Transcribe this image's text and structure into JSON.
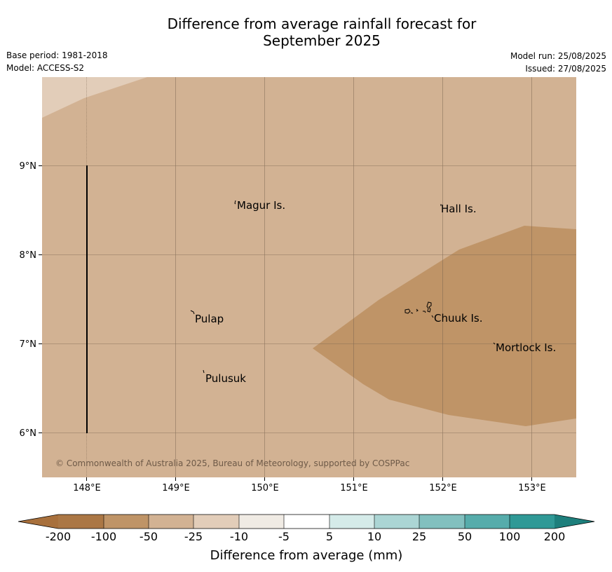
{
  "header": {
    "title_line1": "Difference from average rainfall forecast for",
    "title_line2": "September 2025",
    "base_period": "Base period: 1981-2018",
    "model": "Model: ACCESS-S2",
    "model_run": "Model run: 25/08/2025",
    "issued": "Issued: 27/08/2025"
  },
  "map": {
    "lon_ticks": [
      "148°E",
      "149°E",
      "150°E",
      "151°E",
      "152°E",
      "153°E"
    ],
    "lat_ticks": [
      "9°N",
      "8°N",
      "7°N",
      "6°N"
    ],
    "places": [
      "Magur Is.",
      "Hall Is.",
      "Pulap",
      "Chuuk Is.",
      "Mortlock Is.",
      "Pulusuk"
    ],
    "copyright": "© Commonwealth of Australia 2025, Bureau of Meteorology, supported by COSPPac",
    "colors": {
      "minus_25_to_50": "#d2b293",
      "minus_50_to_100": "#bf9467",
      "minus_10_to_25": "#e2cdb9"
    }
  },
  "colorbar": {
    "labels": [
      "-200",
      "-100",
      "-50",
      "-25",
      "-10",
      "-5",
      "5",
      "10",
      "25",
      "50",
      "100",
      "200"
    ],
    "colors": [
      "#a8703c",
      "#ab7745",
      "#bf9467",
      "#d2b293",
      "#e2cdb9",
      "#f0ebe4",
      "#ffffff",
      "#d5ebe9",
      "#abd5d4",
      "#82c0bf",
      "#56acab",
      "#2f9996",
      "#1d7f7c"
    ],
    "title": "Difference from average (mm)"
  }
}
